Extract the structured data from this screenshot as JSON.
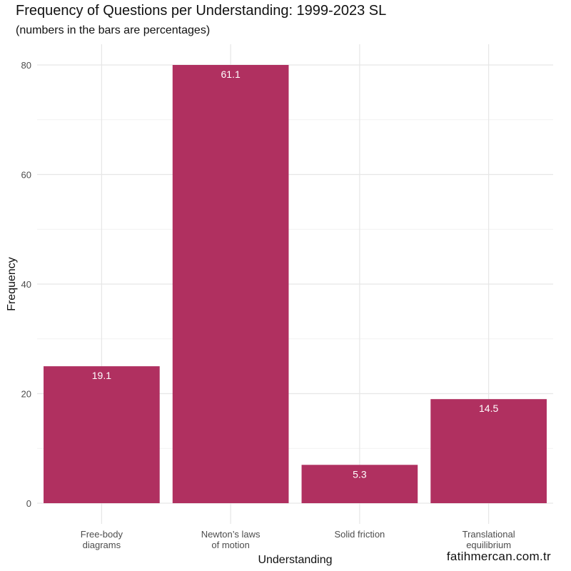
{
  "chart_data": {
    "type": "bar",
    "title": "Frequency of Questions per Understanding: 1999-2023 SL",
    "subtitle": "(numbers in the bars are percentages)",
    "xlabel": "Understanding",
    "ylabel": "Frequency",
    "categories": [
      [
        "Free-body",
        "diagrams"
      ],
      [
        "Newton’s laws",
        "of motion"
      ],
      [
        "Solid friction"
      ],
      [
        "Translational",
        "equilibrium"
      ]
    ],
    "values": [
      25,
      80,
      7,
      19
    ],
    "labels": [
      "19.1",
      "61.1",
      "5.3",
      "14.5"
    ],
    "ylim": [
      0,
      84
    ],
    "yticks": [
      0,
      20,
      40,
      60,
      80
    ],
    "bar_color": "#b03060",
    "grid": true
  },
  "watermark": "fatihmercan.com.tr"
}
